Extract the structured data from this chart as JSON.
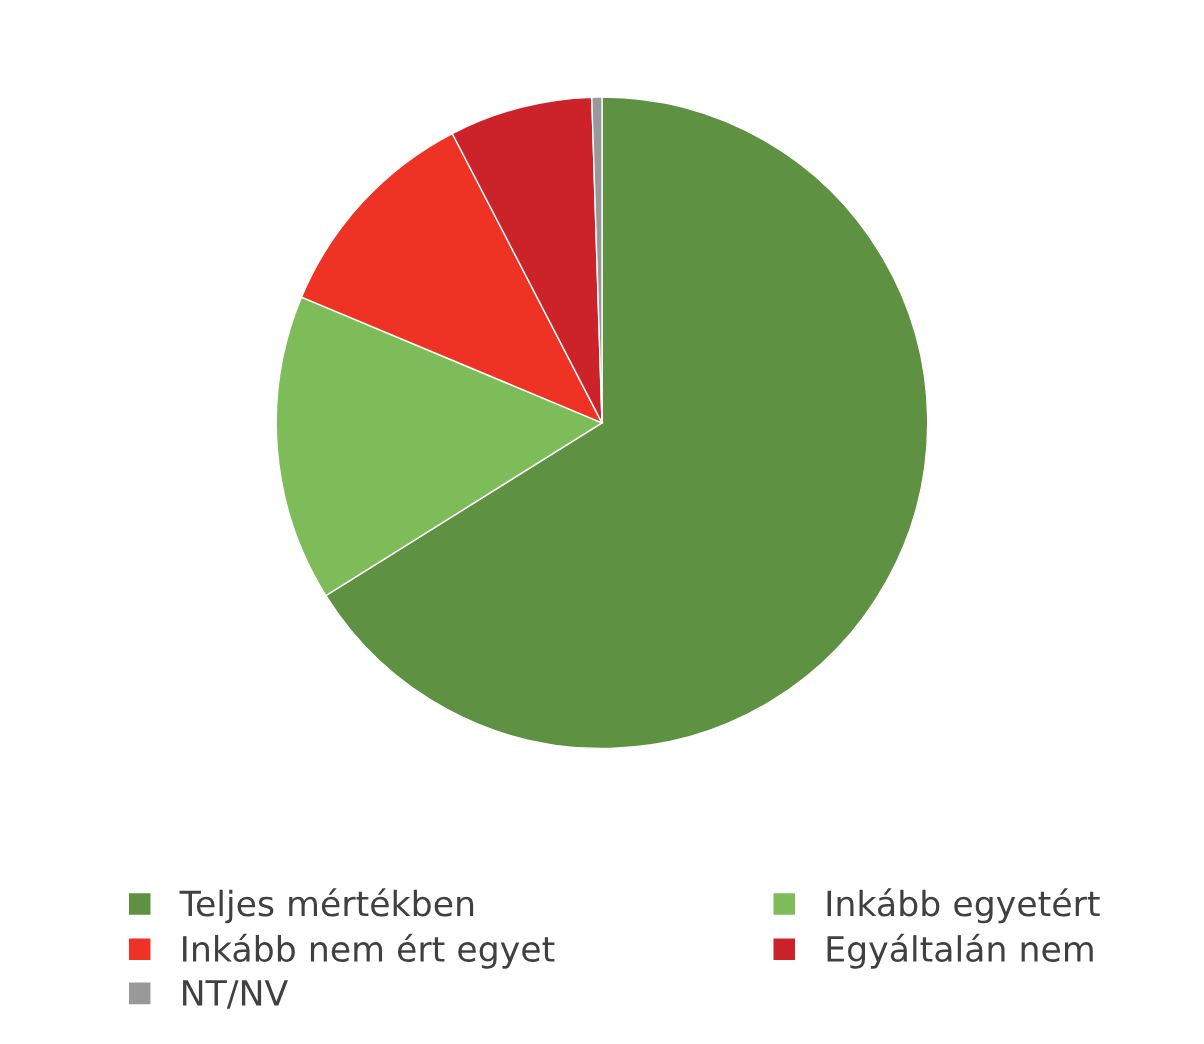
{
  "chart_data": {
    "type": "pie",
    "categories": [
      "Teljes mértékben",
      "Inkább egyetért",
      "Inkább nem ért egyet",
      "Egyáltalán nem",
      "NT/NV"
    ],
    "values": [
      66.1,
      15.2,
      11.1,
      7.1,
      0.5
    ],
    "colors": [
      "#5f9142",
      "#7ebc59",
      "#ee3224",
      "#cc2229",
      "#999999"
    ],
    "legend": "bottom"
  }
}
